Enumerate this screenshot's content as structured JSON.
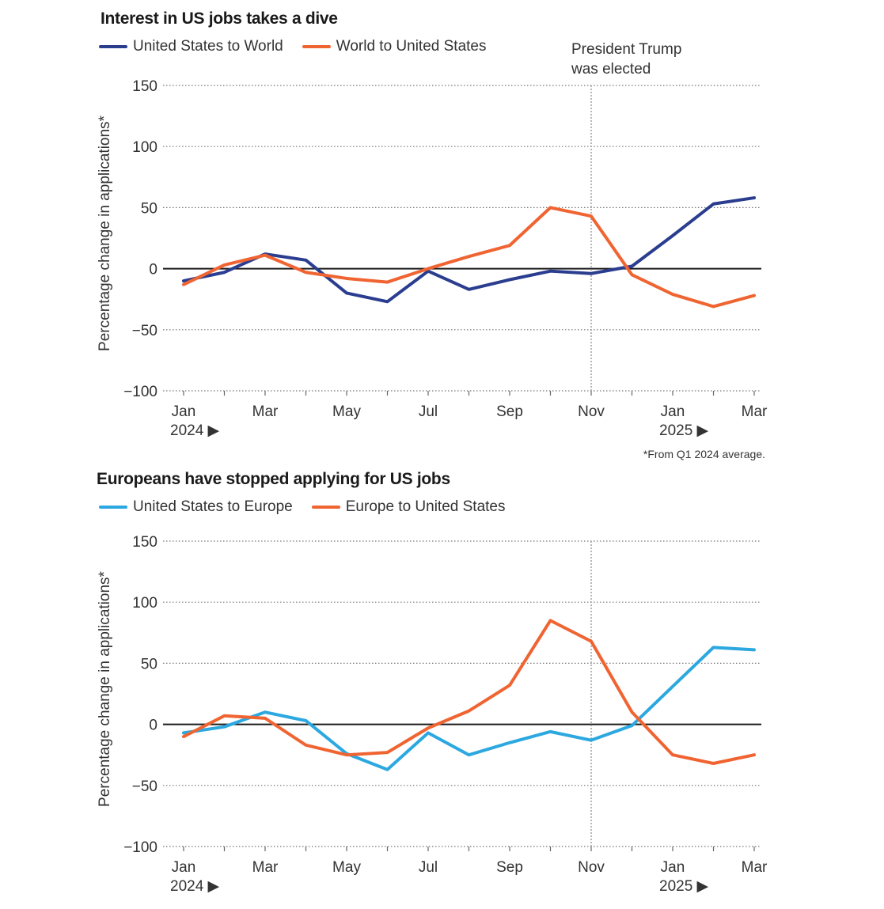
{
  "chart_data": [
    {
      "type": "line",
      "title": "Interest in US jobs takes a dive",
      "ylabel": "Percentage change in applications*",
      "ylim": [
        -100,
        150
      ],
      "yticks": [
        150,
        100,
        50,
        0,
        -50,
        -100
      ],
      "grid": "dotted horizontal",
      "legend_position": "top-left",
      "x": [
        "Jan 2024",
        "Feb 2024",
        "Mar 2024",
        "Apr 2024",
        "May 2024",
        "Jun 2024",
        "Jul 2024",
        "Aug 2024",
        "Sep 2024",
        "Oct 2024",
        "Nov 2024",
        "Dec 2024",
        "Jan 2025",
        "Feb 2025",
        "Mar 2025"
      ],
      "xtick_labels": [
        {
          "label": "Jan",
          "sub": "2024 ▶"
        },
        {
          "label": "Mar",
          "sub": ""
        },
        {
          "label": "May",
          "sub": ""
        },
        {
          "label": "Jul",
          "sub": ""
        },
        {
          "label": "Sep",
          "sub": ""
        },
        {
          "label": "Nov",
          "sub": ""
        },
        {
          "label": "Jan",
          "sub": "2025 ▶"
        },
        {
          "label": "Mar",
          "sub": ""
        }
      ],
      "series": [
        {
          "name": "United States to World",
          "color": "#2a3d8f",
          "values": [
            -10,
            -3,
            12,
            7,
            -20,
            -27,
            -2,
            -17,
            -9,
            -2,
            -4,
            2,
            27,
            53,
            58
          ]
        },
        {
          "name": "World to United States",
          "color": "#f06432",
          "values": [
            -13,
            3,
            11,
            -3,
            -8,
            -11,
            0,
            10,
            19,
            50,
            43,
            -5,
            -21,
            -31,
            -22
          ]
        }
      ],
      "annotation": {
        "text": [
          "President Trump",
          "was elected"
        ],
        "at": "Nov 2024"
      },
      "footnote": "*From Q1 2024 average."
    },
    {
      "type": "line",
      "title": "Europeans have stopped applying for US jobs",
      "ylabel": "Percentage change in applications*",
      "ylim": [
        -100,
        150
      ],
      "yticks": [
        150,
        100,
        50,
        0,
        -50,
        -100
      ],
      "grid": "dotted horizontal",
      "legend_position": "top-left",
      "x": [
        "Jan 2024",
        "Feb 2024",
        "Mar 2024",
        "Apr 2024",
        "May 2024",
        "Jun 2024",
        "Jul 2024",
        "Aug 2024",
        "Sep 2024",
        "Oct 2024",
        "Nov 2024",
        "Dec 2024",
        "Jan 2025",
        "Feb 2025",
        "Mar 2025"
      ],
      "xtick_labels": [
        {
          "label": "Jan",
          "sub": "2024 ▶"
        },
        {
          "label": "Mar",
          "sub": ""
        },
        {
          "label": "May",
          "sub": ""
        },
        {
          "label": "Jul",
          "sub": ""
        },
        {
          "label": "Sep",
          "sub": ""
        },
        {
          "label": "Nov",
          "sub": ""
        },
        {
          "label": "Jan",
          "sub": "2025 ▶"
        },
        {
          "label": "Mar",
          "sub": ""
        }
      ],
      "series": [
        {
          "name": "United States to Europe",
          "color": "#2ca8e0",
          "values": [
            -7,
            -2,
            10,
            3,
            -24,
            -37,
            -7,
            -25,
            -15,
            -6,
            -13,
            -1,
            31,
            63,
            61
          ]
        },
        {
          "name": "Europe to United States",
          "color": "#f06432",
          "values": [
            -10,
            7,
            5,
            -17,
            -25,
            -23,
            -3,
            11,
            32,
            85,
            68,
            10,
            -25,
            -32,
            -25
          ]
        }
      ]
    }
  ]
}
